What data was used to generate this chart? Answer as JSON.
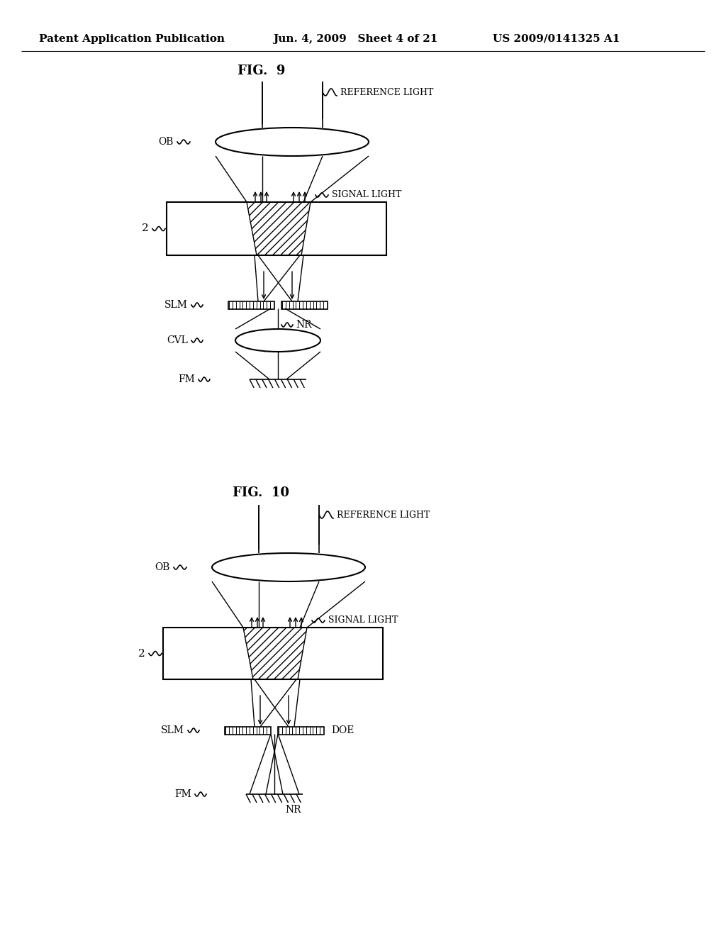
{
  "bg_color": "#ffffff",
  "header_left": "Patent Application Publication",
  "header_mid": "Jun. 4, 2009   Sheet 4 of 21",
  "header_right": "US 2009/0141325 A1",
  "fig9_title": "FIG.  9",
  "fig10_title": "FIG.  10",
  "text_color": "#000000",
  "line_color": "#000000"
}
